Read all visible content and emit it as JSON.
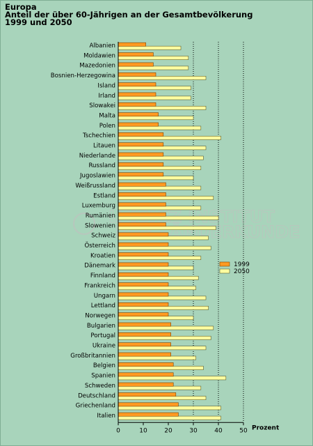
{
  "title": {
    "line1": "Europa",
    "line2": "Anteil der über 60-Jährigen an der Gesamtbevölkerung",
    "line3": "1999 und 2050"
  },
  "watermark": {
    "line1": "LEIBNIZ-INSTITUT",
    "line2": "FÜR LÄNDERKUNDE"
  },
  "colors": {
    "series_1999": "#ff9a22",
    "series_2050": "#ffffa0",
    "background": "#a8d4bb"
  },
  "chart_data": {
    "type": "bar",
    "orientation": "horizontal",
    "categories": [
      "Albanien",
      "Moldawien",
      "Mazedonien",
      "Bosnien-Herzegowina",
      "Island",
      "Irland",
      "Slowakei",
      "Malta",
      "Polen",
      "Tschechien",
      "Litauen",
      "Niederlande",
      "Russland",
      "Jugoslawien",
      "Weißrussland",
      "Estland",
      "Luxemburg",
      "Rumänien",
      "Slowenien",
      "Schweiz",
      "Österreich",
      "Kroatien",
      "Dänemark",
      "Finnland",
      "Frankreich",
      "Ungarn",
      "Lettland",
      "Norwegen",
      "Bulgarien",
      "Portugal",
      "Ukraine",
      "Großbritannien",
      "Belgien",
      "Spanien",
      "Schweden",
      "Deutschland",
      "Griechenland",
      "Italien"
    ],
    "series": [
      {
        "name": "1999",
        "values": [
          11,
          14,
          14,
          15,
          15,
          15,
          15,
          16,
          16,
          18,
          18,
          18,
          18,
          18,
          19,
          19,
          19,
          19,
          19,
          20,
          20,
          20,
          20,
          20,
          20,
          20,
          20,
          20,
          21,
          21,
          21,
          21,
          22,
          22,
          22,
          23,
          24,
          24
        ]
      },
      {
        "name": "2050",
        "values": [
          25,
          28,
          28,
          35,
          29,
          29,
          35,
          30,
          33,
          41,
          35,
          34,
          33,
          30,
          33,
          38,
          33,
          40,
          39,
          36,
          37,
          33,
          30,
          32,
          31,
          35,
          36,
          30,
          38,
          37,
          35,
          31,
          34,
          43,
          33,
          35,
          41,
          41
        ]
      }
    ],
    "xlabel": "Prozent",
    "xlim": [
      0,
      50
    ],
    "xticks": [
      0,
      10,
      20,
      30,
      40,
      50
    ],
    "grid": "vertical dotted at 30, 40, 50",
    "legend": "right"
  }
}
